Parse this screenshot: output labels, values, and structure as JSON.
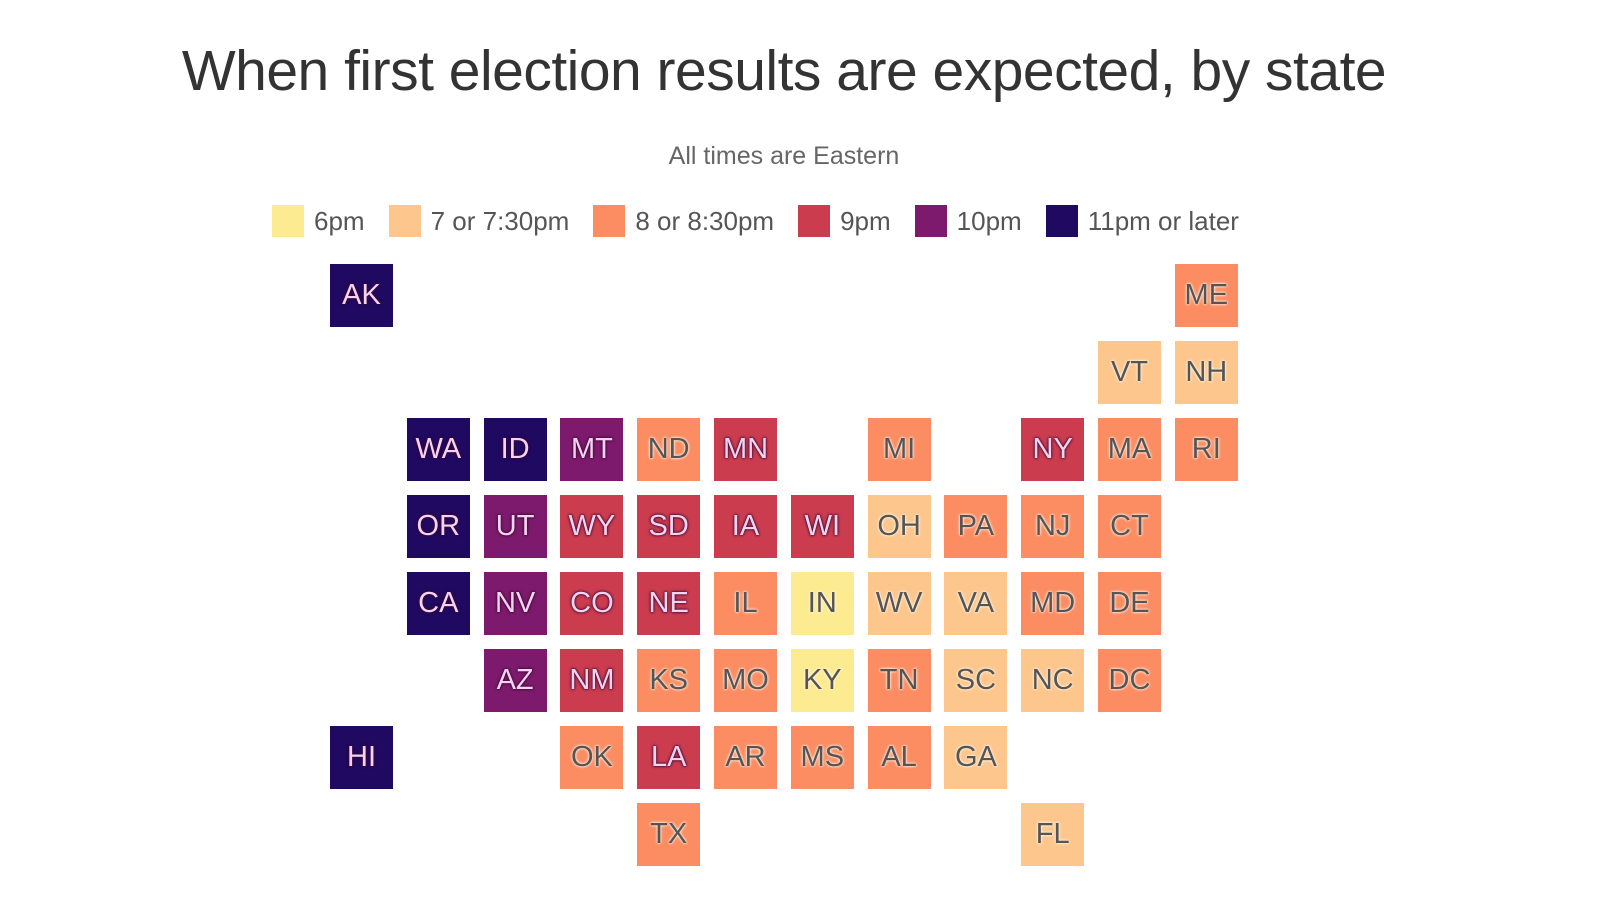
{
  "chart_data": {
    "type": "heatmap",
    "title": "When first election results are expected, by state",
    "subtitle": "All times are Eastern",
    "legend": [
      {
        "key": "6",
        "label": "6pm",
        "color": "#fdeb91"
      },
      {
        "key": "7",
        "label": "7 or 7:30pm",
        "color": "#fdc68c"
      },
      {
        "key": "8",
        "label": "8 or 8:30pm",
        "color": "#fc8c62"
      },
      {
        "key": "9",
        "label": "9pm",
        "color": "#cb3c4f"
      },
      {
        "key": "10",
        "label": "10pm",
        "color": "#7d1a6d"
      },
      {
        "key": "11",
        "label": "11pm or later",
        "color": "#1f0961"
      }
    ],
    "states": [
      {
        "s": "AK",
        "col": 0,
        "row": 0,
        "t": "11"
      },
      {
        "s": "ME",
        "col": 11,
        "row": 0,
        "t": "8"
      },
      {
        "s": "VT",
        "col": 10,
        "row": 1,
        "t": "7"
      },
      {
        "s": "NH",
        "col": 11,
        "row": 1,
        "t": "7"
      },
      {
        "s": "WA",
        "col": 1,
        "row": 2,
        "t": "11"
      },
      {
        "s": "ID",
        "col": 2,
        "row": 2,
        "t": "11"
      },
      {
        "s": "MT",
        "col": 3,
        "row": 2,
        "t": "10"
      },
      {
        "s": "ND",
        "col": 4,
        "row": 2,
        "t": "8"
      },
      {
        "s": "MN",
        "col": 5,
        "row": 2,
        "t": "9"
      },
      {
        "s": "MI",
        "col": 7,
        "row": 2,
        "t": "8"
      },
      {
        "s": "NY",
        "col": 9,
        "row": 2,
        "t": "9"
      },
      {
        "s": "MA",
        "col": 10,
        "row": 2,
        "t": "8"
      },
      {
        "s": "RI",
        "col": 11,
        "row": 2,
        "t": "8"
      },
      {
        "s": "OR",
        "col": 1,
        "row": 3,
        "t": "11"
      },
      {
        "s": "UT",
        "col": 2,
        "row": 3,
        "t": "10"
      },
      {
        "s": "WY",
        "col": 3,
        "row": 3,
        "t": "9"
      },
      {
        "s": "SD",
        "col": 4,
        "row": 3,
        "t": "9"
      },
      {
        "s": "IA",
        "col": 5,
        "row": 3,
        "t": "9"
      },
      {
        "s": "WI",
        "col": 6,
        "row": 3,
        "t": "9"
      },
      {
        "s": "OH",
        "col": 7,
        "row": 3,
        "t": "7"
      },
      {
        "s": "PA",
        "col": 8,
        "row": 3,
        "t": "8"
      },
      {
        "s": "NJ",
        "col": 9,
        "row": 3,
        "t": "8"
      },
      {
        "s": "CT",
        "col": 10,
        "row": 3,
        "t": "8"
      },
      {
        "s": "CA",
        "col": 1,
        "row": 4,
        "t": "11"
      },
      {
        "s": "NV",
        "col": 2,
        "row": 4,
        "t": "10"
      },
      {
        "s": "CO",
        "col": 3,
        "row": 4,
        "t": "9"
      },
      {
        "s": "NE",
        "col": 4,
        "row": 4,
        "t": "9"
      },
      {
        "s": "IL",
        "col": 5,
        "row": 4,
        "t": "8"
      },
      {
        "s": "IN",
        "col": 6,
        "row": 4,
        "t": "6"
      },
      {
        "s": "WV",
        "col": 7,
        "row": 4,
        "t": "7"
      },
      {
        "s": "VA",
        "col": 8,
        "row": 4,
        "t": "7"
      },
      {
        "s": "MD",
        "col": 9,
        "row": 4,
        "t": "8"
      },
      {
        "s": "DE",
        "col": 10,
        "row": 4,
        "t": "8"
      },
      {
        "s": "AZ",
        "col": 2,
        "row": 5,
        "t": "10"
      },
      {
        "s": "NM",
        "col": 3,
        "row": 5,
        "t": "9"
      },
      {
        "s": "KS",
        "col": 4,
        "row": 5,
        "t": "8"
      },
      {
        "s": "MO",
        "col": 5,
        "row": 5,
        "t": "8"
      },
      {
        "s": "KY",
        "col": 6,
        "row": 5,
        "t": "6"
      },
      {
        "s": "TN",
        "col": 7,
        "row": 5,
        "t": "8"
      },
      {
        "s": "SC",
        "col": 8,
        "row": 5,
        "t": "7"
      },
      {
        "s": "NC",
        "col": 9,
        "row": 5,
        "t": "7"
      },
      {
        "s": "DC",
        "col": 10,
        "row": 5,
        "t": "8"
      },
      {
        "s": "HI",
        "col": 0,
        "row": 6,
        "t": "11"
      },
      {
        "s": "OK",
        "col": 3,
        "row": 6,
        "t": "8"
      },
      {
        "s": "LA",
        "col": 4,
        "row": 6,
        "t": "9"
      },
      {
        "s": "AR",
        "col": 5,
        "row": 6,
        "t": "8"
      },
      {
        "s": "MS",
        "col": 6,
        "row": 6,
        "t": "8"
      },
      {
        "s": "AL",
        "col": 7,
        "row": 6,
        "t": "8"
      },
      {
        "s": "GA",
        "col": 8,
        "row": 6,
        "t": "7"
      },
      {
        "s": "TX",
        "col": 4,
        "row": 7,
        "t": "8"
      },
      {
        "s": "FL",
        "col": 9,
        "row": 7,
        "t": "7"
      }
    ]
  }
}
